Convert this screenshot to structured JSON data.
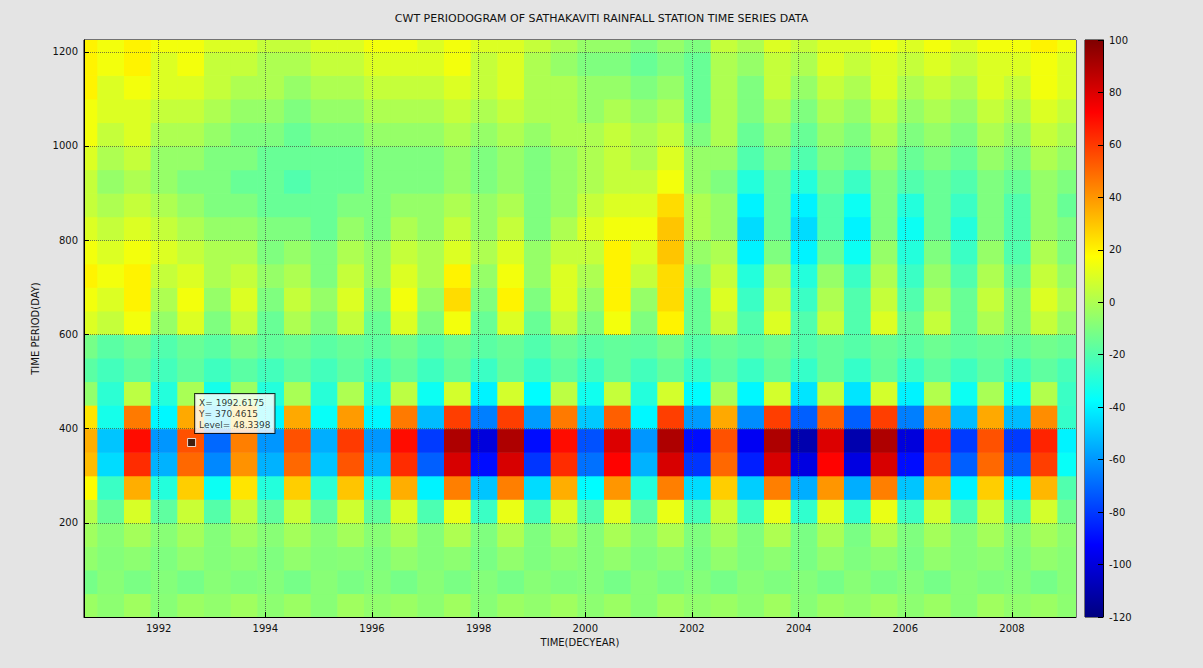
{
  "chart_data": {
    "type": "heatmap",
    "title": "CWT PERIODOGRAM OF SATHAKAVITI RAINFALL STATION TIME SERIES DATA",
    "xlabel": "TIME(DECYEAR)",
    "ylabel": "TIME PERIOD(DAY)",
    "x": [
      1990.6,
      1991.1,
      1991.6,
      1992.1,
      1992.6,
      1993.1,
      1993.6,
      1994.1,
      1994.6,
      1995.1,
      1995.6,
      1996.1,
      1996.6,
      1997.1,
      1997.6,
      1998.1,
      1998.6,
      1999.1,
      1999.6,
      2000.1,
      2000.6,
      2001.1,
      2001.6,
      2002.1,
      2002.6,
      2003.1,
      2003.6,
      2004.1,
      2004.6,
      2005.1,
      2005.6,
      2006.1,
      2006.6,
      2007.1,
      2007.6,
      2008.1,
      2008.6,
      2009.1
    ],
    "y": [
      25,
      75,
      125,
      175,
      225,
      275,
      325,
      375,
      425,
      475,
      525,
      575,
      625,
      675,
      725,
      775,
      825,
      875,
      925,
      975,
      1025,
      1075,
      1125,
      1175,
      1225
    ],
    "z": [
      [
        -4,
        -7,
        -3,
        -8,
        -4,
        -6,
        -3,
        -7,
        -4,
        -8,
        -3,
        -6,
        -4,
        -7,
        -3,
        -8,
        -4,
        -6,
        -3,
        -7,
        -4,
        -8,
        -3,
        -6,
        -4,
        -7,
        -3,
        -8,
        -4,
        -6,
        -3,
        -7,
        -4,
        -8,
        -3,
        -6,
        -4,
        -7
      ],
      [
        -12,
        -8,
        -11,
        -9,
        -12,
        -8,
        -10,
        -9,
        -12,
        -8,
        -11,
        -9,
        -12,
        -8,
        -11,
        -9,
        -12,
        -8,
        -10,
        -9,
        -12,
        -8,
        -11,
        -9,
        -12,
        -8,
        -10,
        -9,
        -12,
        -8,
        -11,
        -9,
        -12,
        -8,
        -10,
        -9,
        -12,
        -8
      ],
      [
        -6,
        -9,
        -7,
        -10,
        -6,
        -9,
        -7,
        -10,
        -6,
        -9,
        -8,
        -10,
        -6,
        -9,
        -7,
        -11,
        -6,
        -10,
        -7,
        -9,
        -6,
        -10,
        -7,
        -11,
        -6,
        -10,
        -7,
        -11,
        -6,
        -10,
        -7,
        -11,
        -6,
        -9,
        -7,
        -10,
        -6,
        -8
      ],
      [
        -3,
        -8,
        -2,
        -8,
        -2,
        -9,
        -3,
        -8,
        -2,
        -8,
        -2,
        -8,
        -1,
        -9,
        0,
        -10,
        0,
        -10,
        -2,
        -9,
        -1,
        -8,
        0,
        -10,
        -2,
        -10,
        0,
        -11,
        -1,
        -11,
        0,
        -10,
        -2,
        -9,
        -2,
        -9,
        -2,
        -7
      ],
      [
        2,
        -15,
        9,
        -17,
        6,
        -19,
        4,
        -17,
        6,
        -16,
        7,
        -17,
        9,
        -21,
        13,
        -25,
        13,
        -23,
        9,
        -20,
        11,
        -17,
        13,
        -23,
        6,
        -24,
        13,
        -27,
        11,
        -27,
        13,
        -25,
        8,
        -21,
        6,
        -21,
        8,
        -13
      ],
      [
        18,
        -25,
        35,
        -30,
        28,
        -35,
        23,
        -30,
        28,
        -28,
        30,
        -30,
        35,
        -40,
        45,
        -50,
        45,
        -45,
        35,
        -38,
        40,
        -30,
        45,
        -45,
        28,
        -48,
        45,
        -55,
        40,
        -55,
        45,
        -50,
        33,
        -40,
        28,
        -40,
        33,
        -20
      ],
      [
        32,
        -45,
        63,
        -54,
        50,
        -63,
        41,
        -54,
        50,
        -50,
        54,
        -54,
        63,
        -72,
        81,
        -90,
        81,
        -81,
        63,
        -68,
        72,
        -54,
        81,
        -81,
        50,
        -86,
        81,
        -99,
        72,
        -99,
        81,
        -90,
        59,
        -72,
        50,
        -72,
        59,
        -36
      ],
      [
        35,
        -50,
        70,
        -60,
        55,
        -70,
        45,
        -60,
        55,
        -55,
        60,
        -60,
        70,
        -80,
        90,
        -100,
        90,
        -90,
        70,
        -75,
        80,
        -60,
        90,
        -90,
        55,
        -95,
        90,
        -110,
        80,
        -110,
        90,
        -100,
        65,
        -80,
        55,
        -80,
        65,
        -40
      ],
      [
        23,
        -33,
        46,
        -39,
        36,
        -46,
        29,
        -39,
        36,
        -36,
        39,
        -39,
        46,
        -52,
        59,
        -65,
        59,
        -59,
        46,
        -49,
        52,
        -39,
        59,
        -59,
        36,
        -62,
        59,
        -72,
        52,
        -72,
        59,
        -65,
        42,
        -52,
        36,
        -52,
        42,
        -26
      ],
      [
        -6,
        -28,
        3,
        -30,
        -1,
        -33,
        -4,
        -30,
        -1,
        -29,
        0,
        -30,
        3,
        -35,
        8,
        -40,
        8,
        -38,
        3,
        -34,
        5,
        -30,
        8,
        -38,
        -1,
        -39,
        8,
        -43,
        5,
        -43,
        8,
        -40,
        1,
        -35,
        -1,
        -35,
        1,
        -25
      ],
      [
        -18,
        -23,
        -17,
        -23,
        -17,
        -24,
        -18,
        -23,
        -17,
        -23,
        -17,
        -23,
        -16,
        -24,
        -16,
        -25,
        -16,
        -25,
        -17,
        -24,
        -16,
        -23,
        -16,
        -25,
        -17,
        -25,
        -16,
        -26,
        -16,
        -26,
        -16,
        -25,
        -17,
        -24,
        -17,
        -24,
        -17,
        -22
      ],
      [
        -12,
        -18,
        -14,
        -20,
        -15,
        -18,
        -12,
        -16,
        -14,
        -18,
        -15,
        -17,
        -13,
        -19,
        -14,
        -18,
        -15,
        -20,
        -14,
        -18,
        -16,
        -17,
        -12,
        -19,
        -15,
        -18,
        -14,
        -20,
        -16,
        -19,
        -15,
        -18,
        -14,
        -17,
        -15,
        -16,
        -13,
        -15
      ],
      [
        10,
        5,
        15,
        -5,
        10,
        -10,
        5,
        -15,
        0,
        -10,
        5,
        -15,
        10,
        -10,
        15,
        -15,
        10,
        -15,
        5,
        -10,
        15,
        -10,
        20,
        -15,
        5,
        -20,
        10,
        -20,
        5,
        -20,
        10,
        -15,
        5,
        -15,
        0,
        -10,
        5,
        -5
      ],
      [
        15,
        10,
        20,
        0,
        15,
        -5,
        10,
        -10,
        5,
        -5,
        10,
        -10,
        15,
        -5,
        25,
        -10,
        20,
        -10,
        10,
        -5,
        20,
        -5,
        25,
        -15,
        10,
        -25,
        5,
        -25,
        0,
        -20,
        5,
        -20,
        0,
        -15,
        5,
        -10,
        10,
        0
      ],
      [
        20,
        15,
        20,
        5,
        10,
        0,
        5,
        -5,
        0,
        -10,
        5,
        -5,
        10,
        0,
        20,
        -5,
        15,
        -5,
        10,
        0,
        20,
        5,
        25,
        -10,
        5,
        -30,
        0,
        -30,
        -5,
        -25,
        0,
        -25,
        -5,
        -20,
        0,
        -15,
        5,
        -5
      ],
      [
        15,
        10,
        15,
        10,
        5,
        0,
        0,
        -10,
        -5,
        -10,
        0,
        -5,
        5,
        0,
        10,
        0,
        10,
        -5,
        5,
        5,
        20,
        10,
        30,
        -5,
        0,
        -40,
        -10,
        -40,
        -15,
        -35,
        -5,
        -30,
        -10,
        -25,
        -5,
        -20,
        0,
        -10
      ],
      [
        10,
        5,
        10,
        5,
        0,
        -5,
        -5,
        -10,
        -10,
        -15,
        -5,
        -10,
        0,
        -5,
        5,
        -5,
        5,
        -10,
        0,
        10,
        15,
        15,
        30,
        0,
        -5,
        -45,
        -15,
        -45,
        -20,
        -40,
        -10,
        -35,
        -15,
        -30,
        -10,
        -20,
        -5,
        -10
      ],
      [
        5,
        0,
        5,
        0,
        -5,
        -10,
        -10,
        -15,
        -15,
        -15,
        -10,
        -10,
        -5,
        -5,
        0,
        -5,
        0,
        -10,
        -5,
        5,
        10,
        10,
        25,
        0,
        -5,
        -40,
        -15,
        -40,
        -20,
        -35,
        -10,
        -30,
        -15,
        -25,
        -10,
        -20,
        -5,
        -15
      ],
      [
        5,
        -5,
        0,
        -5,
        -10,
        -10,
        -15,
        -15,
        -20,
        -15,
        -15,
        -10,
        -10,
        -10,
        -5,
        -10,
        -5,
        -10,
        -5,
        0,
        5,
        5,
        15,
        -5,
        -10,
        -30,
        -15,
        -30,
        -15,
        -25,
        -10,
        -20,
        -15,
        -20,
        -10,
        -15,
        -5,
        -10
      ],
      [
        10,
        0,
        5,
        -5,
        -5,
        -10,
        -10,
        -15,
        -15,
        -15,
        -15,
        -10,
        -10,
        -10,
        -5,
        -10,
        -5,
        -10,
        -5,
        0,
        5,
        0,
        10,
        -5,
        -5,
        -20,
        -10,
        -20,
        -10,
        -15,
        -5,
        -15,
        -10,
        -15,
        -5,
        -10,
        0,
        -5
      ],
      [
        15,
        5,
        10,
        0,
        0,
        -5,
        -10,
        -10,
        -15,
        -10,
        -10,
        -5,
        -5,
        -5,
        0,
        -5,
        0,
        -5,
        0,
        0,
        5,
        0,
        5,
        -10,
        0,
        -15,
        -5,
        -15,
        -5,
        -10,
        0,
        -10,
        -5,
        -10,
        0,
        -5,
        5,
        0
      ],
      [
        15,
        10,
        10,
        5,
        5,
        0,
        -5,
        -5,
        -10,
        -5,
        -5,
        0,
        0,
        0,
        5,
        0,
        5,
        0,
        0,
        -5,
        0,
        -5,
        0,
        -15,
        0,
        -10,
        0,
        -10,
        0,
        -5,
        5,
        -5,
        0,
        -5,
        5,
        0,
        10,
        5
      ],
      [
        20,
        10,
        15,
        10,
        10,
        5,
        0,
        0,
        -5,
        0,
        0,
        5,
        5,
        5,
        10,
        5,
        10,
        0,
        0,
        -5,
        -5,
        -10,
        -5,
        -15,
        0,
        -10,
        5,
        -5,
        5,
        0,
        10,
        0,
        5,
        0,
        10,
        5,
        15,
        10
      ],
      [
        20,
        15,
        20,
        10,
        15,
        5,
        5,
        0,
        0,
        5,
        5,
        10,
        10,
        10,
        15,
        5,
        10,
        0,
        -5,
        -10,
        -10,
        -15,
        -10,
        -15,
        0,
        -5,
        5,
        0,
        10,
        5,
        10,
        5,
        10,
        5,
        10,
        10,
        15,
        10
      ],
      [
        20,
        15,
        20,
        15,
        15,
        10,
        10,
        5,
        5,
        10,
        10,
        15,
        15,
        10,
        15,
        10,
        10,
        5,
        0,
        -5,
        -5,
        -10,
        -5,
        -10,
        5,
        0,
        10,
        5,
        10,
        10,
        15,
        10,
        15,
        10,
        15,
        15,
        20,
        15
      ]
    ],
    "xlim": [
      1990.6,
      2009.2
    ],
    "ylim": [
      0,
      1225
    ],
    "xticks": [
      1992,
      1994,
      1996,
      1998,
      2000,
      2002,
      2004,
      2006,
      2008
    ],
    "yticks": [
      200,
      400,
      600,
      800,
      1000,
      1200
    ],
    "grid": true,
    "colorbar": {
      "range": [
        -120,
        100
      ],
      "ticks": [
        -120,
        -100,
        -80,
        -60,
        -40,
        -20,
        0,
        20,
        40,
        60,
        80,
        100
      ]
    },
    "annotations": [
      {
        "x": 1992.6175,
        "y": 370.4615,
        "text": [
          "X= 1992.6175",
          "Y= 370.4615",
          "Level= 48.3398"
        ]
      }
    ]
  }
}
